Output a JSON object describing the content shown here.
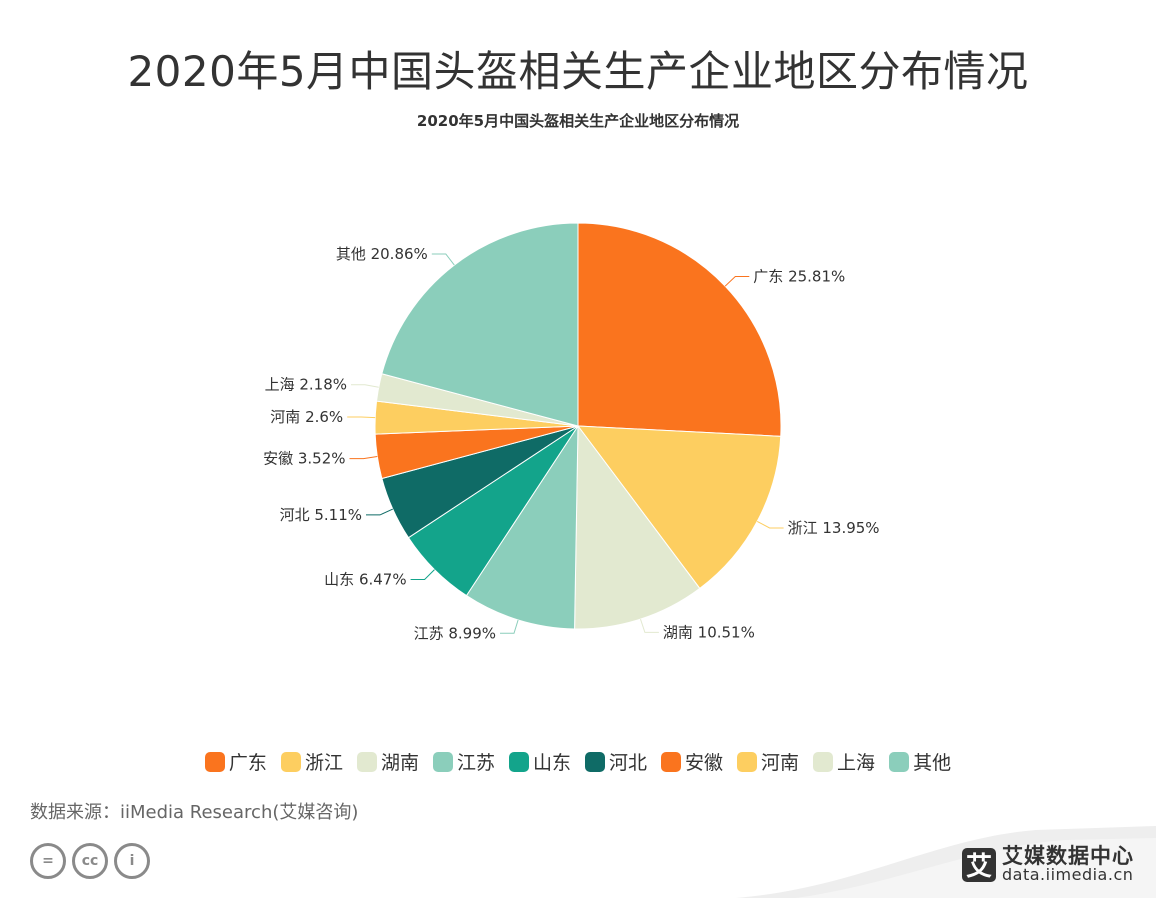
{
  "header": {
    "title": "2020年5月中国头盔相关生产企业地区分布情况",
    "subtitle": "2020年5月中国头盔相关生产企业地区分布情况"
  },
  "chart_data": {
    "type": "pie",
    "title": "2020年5月中国头盔相关生产企业地区分布情况",
    "unit": "%",
    "slices": [
      {
        "label": "广东",
        "value": 25.81,
        "color": "#fa741e",
        "display": "广东 25.81%"
      },
      {
        "label": "浙江",
        "value": 13.95,
        "color": "#fdce60",
        "display": "浙江 13.95%"
      },
      {
        "label": "湖南",
        "value": 10.51,
        "color": "#e2e9d0",
        "display": "湖南 10.51%"
      },
      {
        "label": "江苏",
        "value": 8.99,
        "color": "#8bcebb",
        "display": "江苏 8.99%"
      },
      {
        "label": "山东",
        "value": 6.47,
        "color": "#13a48b",
        "display": "山东 6.47%"
      },
      {
        "label": "河北",
        "value": 5.11,
        "color": "#0f6b66",
        "display": "河北 5.11%"
      },
      {
        "label": "安徽",
        "value": 3.52,
        "color": "#fa741e",
        "display": "安徽 3.52%"
      },
      {
        "label": "河南",
        "value": 2.6,
        "color": "#fdce60",
        "display": "河南 2.6%"
      },
      {
        "label": "上海",
        "value": 2.18,
        "color": "#e2e9d0",
        "display": "上海 2.18%"
      },
      {
        "label": "其他",
        "value": 20.86,
        "color": "#8bcebb",
        "display": "其他 20.86%"
      }
    ],
    "legend_position": "bottom"
  },
  "footer": {
    "source": "数据来源：iiMedia Research(艾媒咨询)",
    "cc_icons": [
      "equals-icon",
      "cc-icon",
      "person-icon"
    ],
    "cc_labels": [
      "=",
      "cc",
      "i"
    ],
    "brand_logo_char": "艾",
    "brand_name": "艾媒数据中心",
    "brand_url": "data.iimedia.cn"
  }
}
